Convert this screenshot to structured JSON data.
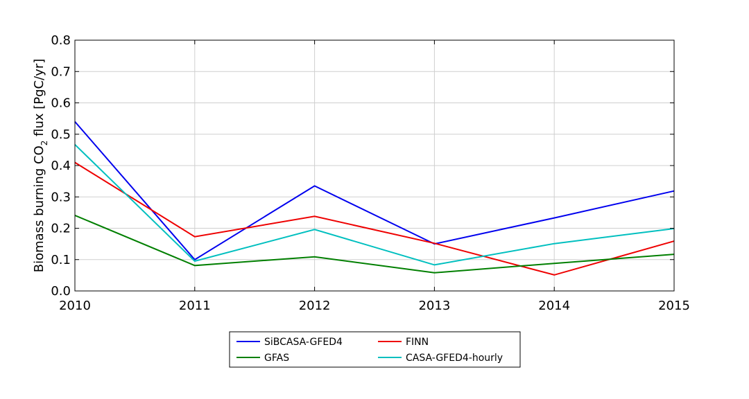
{
  "chart_data": {
    "type": "line",
    "title": "",
    "xlabel": "",
    "ylabel": "Biomass burning CO2 flux [PgC/yr]",
    "ylabel_parts": {
      "pre": "Biomass burning CO",
      "sub": "2",
      "post": " flux [PgC/yr]"
    },
    "x": [
      2010,
      2011,
      2012,
      2013,
      2014,
      2015
    ],
    "xlim": [
      2010,
      2015
    ],
    "ylim": [
      0,
      0.8
    ],
    "xticks": [
      "2010",
      "2011",
      "2012",
      "2013",
      "2014",
      "2015"
    ],
    "yticks": [
      "0.0",
      "0.1",
      "0.2",
      "0.3",
      "0.4",
      "0.5",
      "0.6",
      "0.7",
      "0.8"
    ],
    "grid": true,
    "legend_position": "below",
    "series": [
      {
        "name": "SiBCASA-GFED4",
        "color": "#0000ee",
        "values": [
          0.54,
          0.1,
          0.335,
          0.15,
          0.233,
          0.319
        ]
      },
      {
        "name": "FINN",
        "color": "#ee0000",
        "values": [
          0.41,
          0.173,
          0.238,
          0.152,
          0.051,
          0.159
        ]
      },
      {
        "name": "GFAS",
        "color": "#007f00",
        "values": [
          0.241,
          0.081,
          0.109,
          0.058,
          0.088,
          0.117
        ]
      },
      {
        "name": "CASA-GFED4-hourly",
        "color": "#00bfbf",
        "values": [
          0.467,
          0.095,
          0.196,
          0.083,
          0.151,
          0.199
        ]
      }
    ]
  }
}
